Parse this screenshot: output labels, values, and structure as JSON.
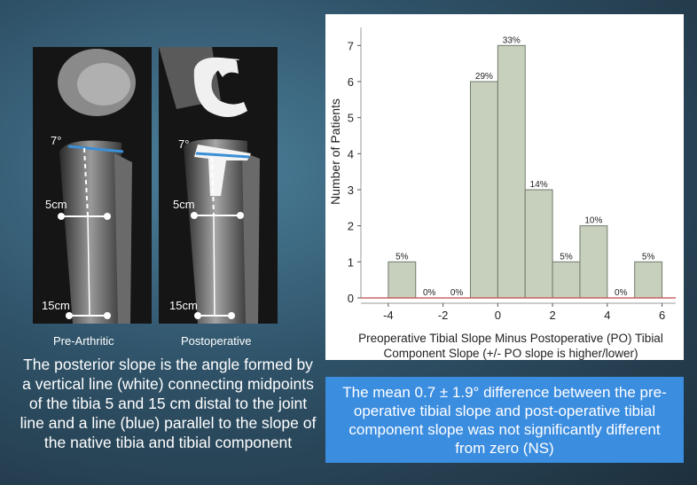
{
  "images": {
    "left": {
      "caption": "Pre-Arthritic",
      "angle_label": "7°",
      "label_5": "5cm",
      "label_15": "15cm"
    },
    "right": {
      "caption": "Postoperative",
      "angle_label": "7°",
      "label_5": "5cm",
      "label_15": "15cm"
    }
  },
  "left_caption": "The posterior slope is the angle formed by a vertical line (white) connecting midpoints of the tibia 5 and 15 cm distal to the joint line and a line (blue) parallel to the slope of the native tibia and tibial component",
  "blue_box": "The mean 0.7 ± 1.9° difference between the pre-operative tibial slope and post-operative tibial component slope was not significantly different  from zero (NS)",
  "colors": {
    "bar_fill": "#c7d0bd",
    "bar_stroke": "#6f7a6a",
    "blue_line": "#3a8fd6",
    "callout_bg": "#3b8de0",
    "baseline": "#c04848"
  },
  "chart_data": {
    "type": "bar",
    "xlabel_line1": "Preoperative Tibial Slope Minus Postoperative (PO) Tibial",
    "xlabel_line2": "Component Slope (+/- PO slope is higher/lower)",
    "ylabel": "Number of Patients",
    "xlim": [
      -5,
      6.5
    ],
    "ylim": [
      0,
      7.5
    ],
    "xticks": [
      -4,
      -2,
      0,
      2,
      4,
      6
    ],
    "yticks": [
      0,
      1,
      2,
      3,
      4,
      5,
      6,
      7
    ],
    "bin_width": 1,
    "bins": [
      {
        "x": -3.5,
        "count": 1,
        "label": "5%"
      },
      {
        "x": -2.5,
        "count": 0,
        "label": "0%"
      },
      {
        "x": -1.5,
        "count": 0,
        "label": "0%"
      },
      {
        "x": -0.5,
        "count": 6,
        "label": "29%"
      },
      {
        "x": 0.5,
        "count": 7,
        "label": "33%"
      },
      {
        "x": 1.5,
        "count": 3,
        "label": "14%"
      },
      {
        "x": 2.5,
        "count": 1,
        "label": "5%"
      },
      {
        "x": 3.5,
        "count": 2,
        "label": "10%"
      },
      {
        "x": 4.5,
        "count": 0,
        "label": "0%"
      },
      {
        "x": 5.5,
        "count": 1,
        "label": "5%"
      }
    ],
    "grid": false
  }
}
